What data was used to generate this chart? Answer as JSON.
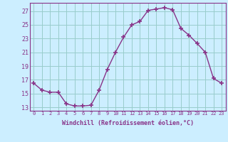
{
  "x": [
    0,
    1,
    2,
    3,
    4,
    5,
    6,
    7,
    8,
    9,
    10,
    11,
    12,
    13,
    14,
    15,
    16,
    17,
    18,
    19,
    20,
    21,
    22,
    23
  ],
  "y": [
    16.5,
    15.5,
    15.2,
    15.2,
    13.5,
    13.2,
    13.2,
    13.3,
    15.5,
    18.5,
    21.0,
    23.2,
    25.0,
    25.5,
    27.1,
    27.3,
    27.5,
    27.2,
    24.5,
    23.5,
    22.3,
    21.0,
    17.2,
    16.5
  ],
  "line_color": "#883388",
  "marker": "+",
  "marker_size": 4,
  "bg_color": "#cceeff",
  "grid_color": "#99cccc",
  "ylabel_ticks": [
    13,
    15,
    17,
    19,
    21,
    23,
    25,
    27
  ],
  "xlabel": "Windchill (Refroidissement éolien,°C)",
  "xlim": [
    -0.5,
    23.5
  ],
  "ylim": [
    12.5,
    28.2
  ],
  "tick_color": "#883388",
  "label_color": "#883388",
  "font_family": "monospace",
  "xtick_labels": [
    "0",
    "1",
    "2",
    "3",
    "4",
    "5",
    "6",
    "7",
    "8",
    "9",
    "10",
    "11",
    "12",
    "13",
    "14",
    "15",
    "16",
    "17",
    "18",
    "19",
    "20",
    "21",
    "22",
    "23"
  ]
}
